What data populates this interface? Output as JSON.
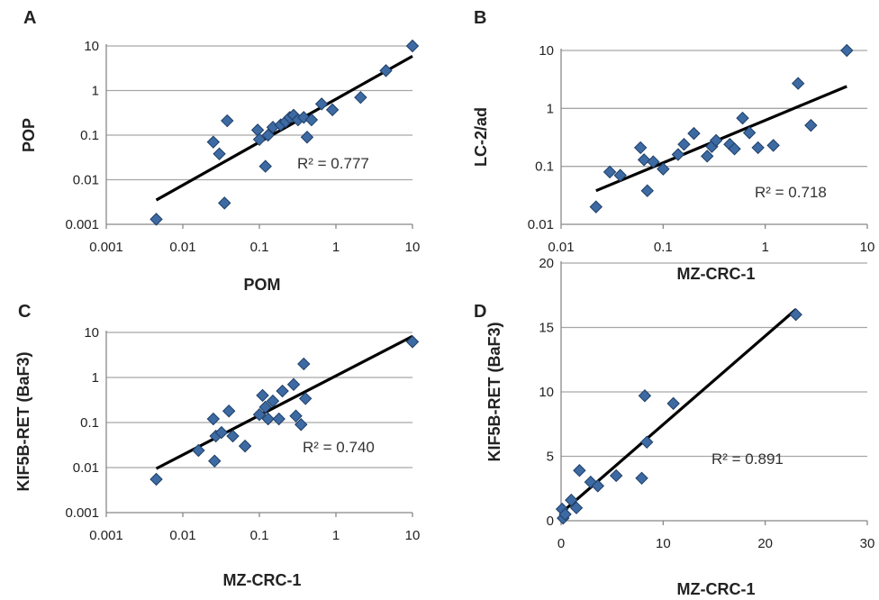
{
  "chart_data": [
    {
      "panel": "A",
      "type": "scatter",
      "x_scale": "log",
      "y_scale": "log",
      "xlabel": "POM",
      "ylabel": "POP",
      "xlim": [
        0.001,
        10
      ],
      "ylim": [
        0.001,
        10
      ],
      "x_ticks": [
        "0.001",
        "0.01",
        "0.1",
        "1",
        "10"
      ],
      "y_ticks": [
        "0.001",
        "0.01",
        "0.1",
        "1",
        "10"
      ],
      "grid": "horizontal",
      "r2_text": "R² = 0.777",
      "trendline": [
        [
          0.0045,
          0.0035
        ],
        [
          10,
          5.9
        ]
      ],
      "points": [
        [
          0.0045,
          0.0013
        ],
        [
          0.025,
          0.07
        ],
        [
          0.03,
          0.038
        ],
        [
          0.035,
          0.003
        ],
        [
          0.038,
          0.21
        ],
        [
          0.095,
          0.13
        ],
        [
          0.1,
          0.08
        ],
        [
          0.12,
          0.02
        ],
        [
          0.13,
          0.1
        ],
        [
          0.15,
          0.15
        ],
        [
          0.19,
          0.17
        ],
        [
          0.22,
          0.2
        ],
        [
          0.25,
          0.25
        ],
        [
          0.28,
          0.28
        ],
        [
          0.32,
          0.22
        ],
        [
          0.38,
          0.25
        ],
        [
          0.42,
          0.09
        ],
        [
          0.48,
          0.22
        ],
        [
          0.65,
          0.5
        ],
        [
          0.9,
          0.37
        ],
        [
          2.1,
          0.7
        ],
        [
          4.5,
          2.8
        ],
        [
          10,
          10
        ]
      ]
    },
    {
      "panel": "B",
      "type": "scatter",
      "x_scale": "log",
      "y_scale": "log",
      "xlabel": "MZ-CRC-1",
      "ylabel": "LC-2/ad",
      "xlim": [
        0.01,
        10
      ],
      "ylim": [
        0.01,
        10
      ],
      "x_ticks": [
        "0.01",
        "0.1",
        "1",
        "10"
      ],
      "y_ticks": [
        "0.01",
        "0.1",
        "1",
        "10"
      ],
      "grid": "horizontal",
      "r2_text": "R² = 0.718",
      "trendline": [
        [
          0.022,
          0.038
        ],
        [
          6.3,
          2.4
        ]
      ],
      "points": [
        [
          0.022,
          0.02
        ],
        [
          0.03,
          0.08
        ],
        [
          0.038,
          0.07
        ],
        [
          0.06,
          0.21
        ],
        [
          0.065,
          0.13
        ],
        [
          0.07,
          0.038
        ],
        [
          0.08,
          0.12
        ],
        [
          0.1,
          0.09
        ],
        [
          0.14,
          0.16
        ],
        [
          0.16,
          0.24
        ],
        [
          0.2,
          0.37
        ],
        [
          0.27,
          0.15
        ],
        [
          0.3,
          0.22
        ],
        [
          0.33,
          0.28
        ],
        [
          0.45,
          0.24
        ],
        [
          0.5,
          0.2
        ],
        [
          0.6,
          0.68
        ],
        [
          0.7,
          0.38
        ],
        [
          0.85,
          0.21
        ],
        [
          1.2,
          0.23
        ],
        [
          2.1,
          2.7
        ],
        [
          2.8,
          0.51
        ],
        [
          6.3,
          10
        ]
      ]
    },
    {
      "panel": "C",
      "type": "scatter",
      "x_scale": "log",
      "y_scale": "log",
      "xlabel": "MZ-CRC-1",
      "ylabel": "KIF5B-RET (BaF3)",
      "xlim": [
        0.001,
        10
      ],
      "ylim": [
        0.001,
        10
      ],
      "x_ticks": [
        "0.001",
        "0.01",
        "0.1",
        "1",
        "10"
      ],
      "y_ticks": [
        "0.001",
        "0.01",
        "0.1",
        "1",
        "10"
      ],
      "grid": "horizontal",
      "r2_text": "R² = 0.740",
      "trendline": [
        [
          0.0045,
          0.0095
        ],
        [
          10,
          8.2
        ]
      ],
      "points": [
        [
          0.0045,
          0.0055
        ],
        [
          0.016,
          0.024
        ],
        [
          0.025,
          0.12
        ],
        [
          0.026,
          0.014
        ],
        [
          0.027,
          0.05
        ],
        [
          0.032,
          0.06
        ],
        [
          0.04,
          0.18
        ],
        [
          0.045,
          0.05
        ],
        [
          0.065,
          0.03
        ],
        [
          0.1,
          0.15
        ],
        [
          0.11,
          0.4
        ],
        [
          0.12,
          0.22
        ],
        [
          0.13,
          0.12
        ],
        [
          0.15,
          0.3
        ],
        [
          0.18,
          0.12
        ],
        [
          0.2,
          0.5
        ],
        [
          0.28,
          0.7
        ],
        [
          0.3,
          0.14
        ],
        [
          0.35,
          0.09
        ],
        [
          0.38,
          2.0
        ],
        [
          0.4,
          0.34
        ],
        [
          10,
          6.2
        ]
      ]
    },
    {
      "panel": "D",
      "type": "scatter",
      "x_scale": "linear",
      "y_scale": "linear",
      "xlabel": "MZ-CRC-1",
      "ylabel": "KIF5B-RET (BaF3)",
      "xlim": [
        0,
        30
      ],
      "ylim": [
        0,
        20
      ],
      "x_ticks": [
        "0",
        "10",
        "20",
        "30"
      ],
      "y_ticks": [
        "0",
        "5",
        "10",
        "15",
        "20"
      ],
      "grid": "horizontal",
      "r2_text": "R² = 0.891",
      "trendline": [
        [
          0.3,
          0.8
        ],
        [
          23,
          16.4
        ]
      ],
      "points": [
        [
          0.1,
          0.9
        ],
        [
          0.2,
          0.2
        ],
        [
          0.4,
          0.5
        ],
        [
          1.0,
          1.6
        ],
        [
          1.5,
          1.0
        ],
        [
          1.8,
          3.9
        ],
        [
          2.9,
          3.0
        ],
        [
          3.6,
          2.7
        ],
        [
          5.4,
          3.5
        ],
        [
          7.9,
          3.3
        ],
        [
          8.2,
          9.7
        ],
        [
          8.4,
          6.1
        ],
        [
          11,
          9.1
        ],
        [
          23,
          16
        ]
      ]
    }
  ]
}
